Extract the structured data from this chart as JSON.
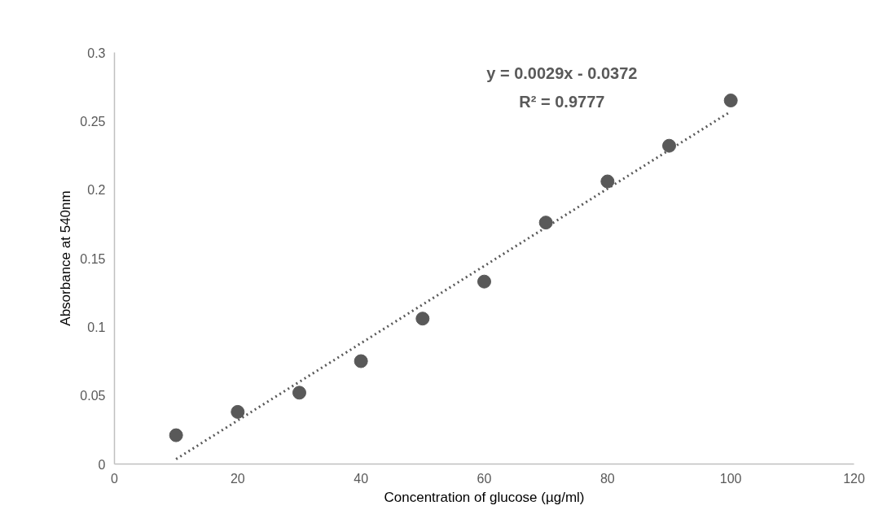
{
  "chart_data": {
    "type": "scatter",
    "xlabel": "Concentration of glucose (µg/ml)",
    "ylabel": "Absorbance at 540nm",
    "xlim": [
      0,
      120
    ],
    "xticks": [
      0,
      20,
      40,
      60,
      80,
      100,
      120
    ],
    "ylim": [
      0,
      0.3
    ],
    "yticks": [
      0,
      0.05,
      0.1,
      0.15,
      0.2,
      0.25,
      0.3
    ],
    "grid": false,
    "series": [
      {
        "color": "#595959",
        "marker": "circle",
        "x": [
          10,
          20,
          30,
          40,
          50,
          60,
          70,
          80,
          90,
          100
        ],
        "values": [
          0.021,
          0.038,
          0.052,
          0.075,
          0.106,
          0.133,
          0.176,
          0.206,
          0.232,
          0.265
        ]
      },
      {
        "type": "line",
        "color": "#595959",
        "line_style": "dotted",
        "x": [
          10,
          100
        ],
        "values": [
          0.0036,
          0.257
        ]
      }
    ],
    "annotations": [
      "y = 0.0029x - 0.0372",
      "R² = 0.9777"
    ]
  }
}
